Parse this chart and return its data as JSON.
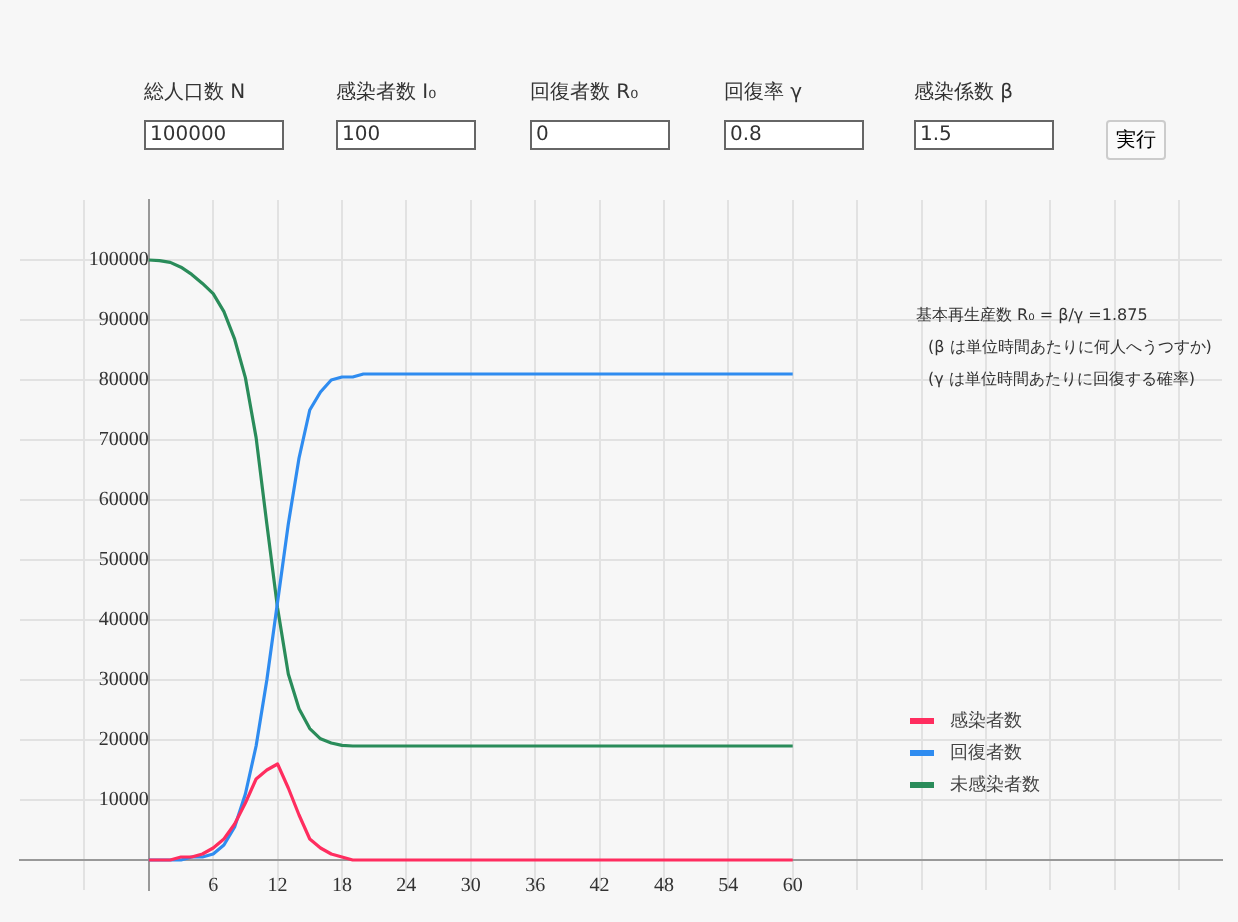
{
  "chart_data": {
    "type": "line",
    "x": [
      0,
      1,
      2,
      3,
      4,
      5,
      6,
      7,
      8,
      9,
      10,
      11,
      12,
      13,
      14,
      15,
      16,
      17,
      18,
      19,
      20,
      21,
      22,
      23,
      24,
      30,
      36,
      42,
      48,
      54,
      60
    ],
    "series": [
      {
        "name": "感染者数",
        "color": "#ff2d5f",
        "values": [
          0,
          0,
          0,
          500,
          500,
          1000,
          2000,
          3500,
          6000,
          9500,
          13500,
          15000,
          16000,
          12000,
          7500,
          3500,
          2000,
          1000,
          500,
          0,
          0,
          0,
          0,
          0,
          0,
          0,
          0,
          0,
          0,
          0,
          0
        ]
      },
      {
        "name": "回復者数",
        "color": "#2f8cf0",
        "values": [
          0,
          0,
          0,
          0,
          500,
          500,
          1000,
          2500,
          5500,
          11000,
          19000,
          30000,
          43000,
          56000,
          67000,
          75000,
          78000,
          80000,
          80500,
          80500,
          81000,
          81000,
          81000,
          81000,
          81000,
          81000,
          81000,
          81000,
          81000,
          81000,
          81000
        ]
      },
      {
        "name": "未感染者数",
        "color": "#2a8c5a",
        "values": [
          100000,
          99900,
          99600,
          98800,
          97600,
          96100,
          94400,
          91400,
          86800,
          80400,
          70400,
          56000,
          42000,
          31000,
          25200,
          21900,
          20200,
          19500,
          19100,
          19000,
          19000,
          19000,
          19000,
          19000,
          19000,
          19000,
          19000,
          19000,
          19000,
          19000,
          19000
        ]
      }
    ],
    "xlim": [
      -12,
      100
    ],
    "xticks": [
      {
        "value": -6,
        "label": null
      },
      {
        "value": 0,
        "label": null
      },
      6,
      12,
      18,
      24,
      30,
      36,
      42,
      48,
      54,
      60,
      {
        "value": 66,
        "label": null
      },
      {
        "value": 72,
        "label": null
      },
      {
        "value": 78,
        "label": null
      },
      {
        "value": 84,
        "label": null
      },
      {
        "value": 90,
        "label": null
      },
      {
        "value": 96,
        "label": null
      }
    ],
    "ylim": [
      -5000,
      110000
    ],
    "yticks": [
      {
        "value": 0,
        "label": null
      },
      10000,
      20000,
      30000,
      40000,
      50000,
      60000,
      70000,
      80000,
      90000,
      100000
    ],
    "grid": true,
    "legend": "bottom right",
    "marker": "none",
    "line_style": "solid",
    "annotations": [
      "基本再生産数 R₀ = β/γ =1.875",
      "(β は単位時間あたりに何人へうつすか)",
      "(γ は単位時間あたりに回復する確率)",
      "総人口数 N",
      "100000",
      "感染者数 I₀",
      "100",
      "回復者数 R₀",
      "0",
      "回復率 γ",
      "0.8",
      "感染係数 β",
      "1.5",
      "実行"
    ]
  }
}
